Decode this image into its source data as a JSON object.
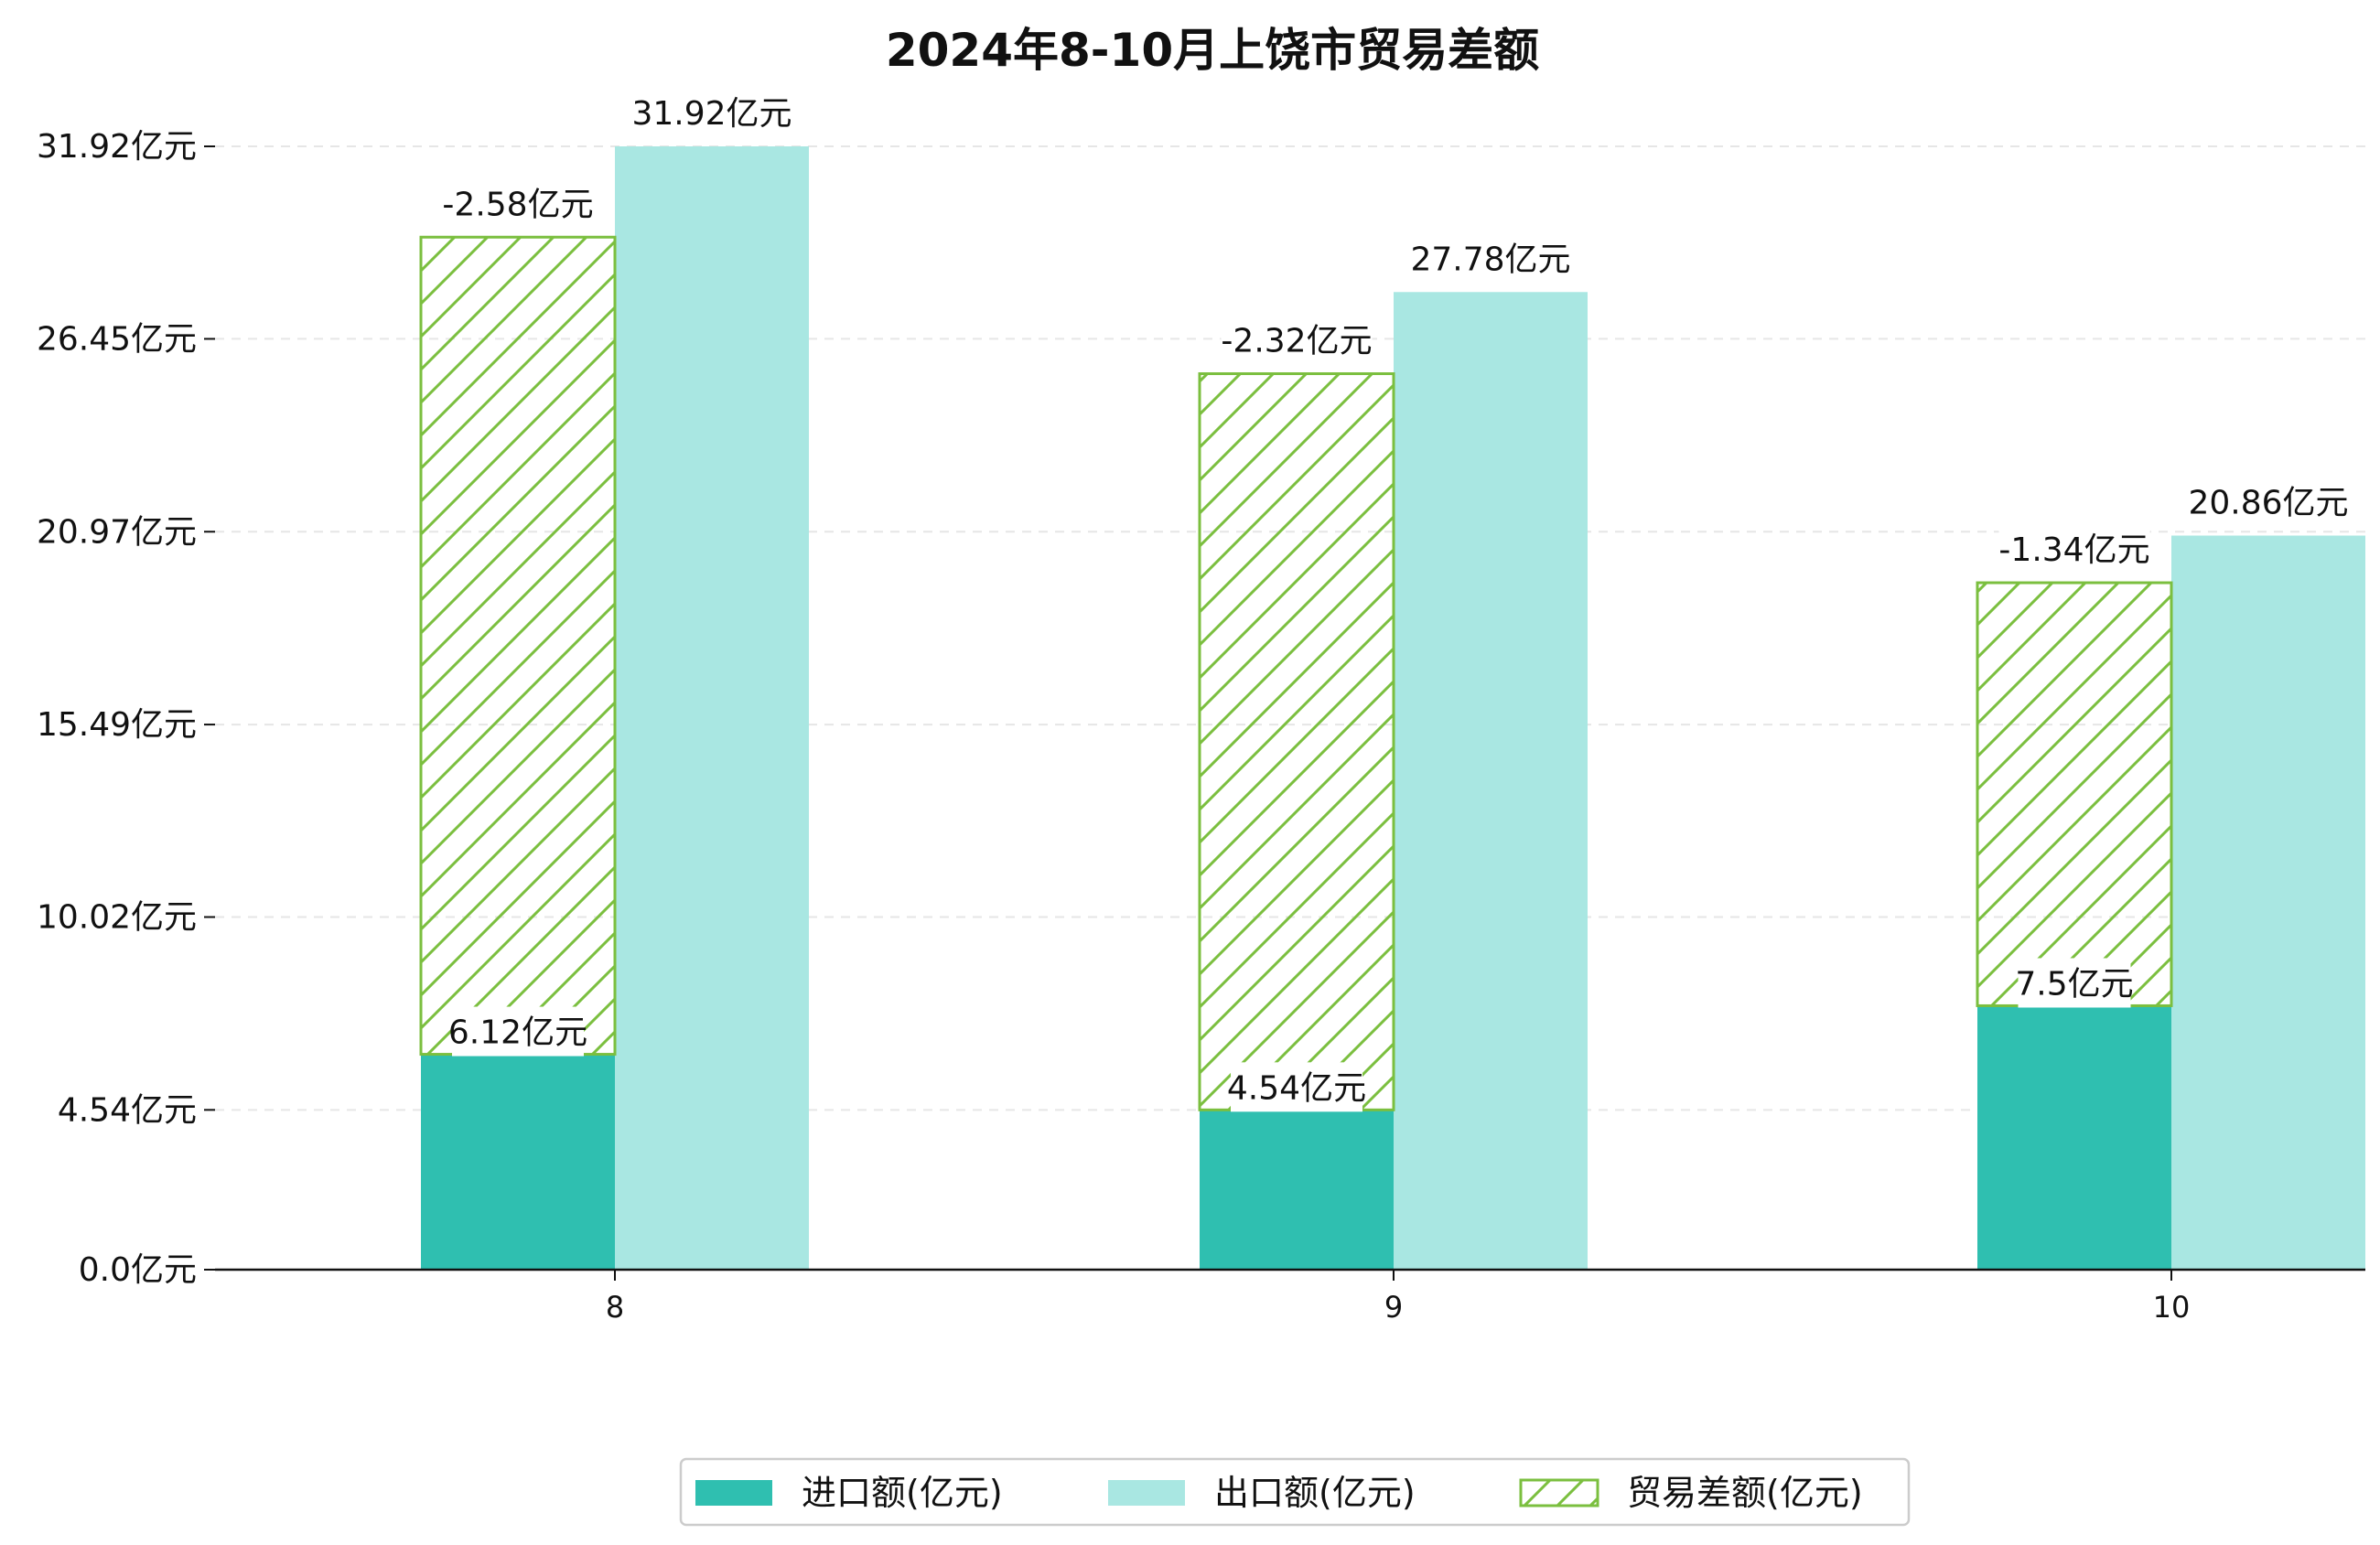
{
  "chart_data": {
    "type": "bar",
    "title": "2024年8-10月上饶市贸易差额",
    "categories": [
      "8",
      "9",
      "10"
    ],
    "series": [
      {
        "name": "进口额(亿元)",
        "values": [
          6.12,
          4.54,
          7.5
        ],
        "labels": [
          "6.12亿元",
          "4.54亿元",
          "7.5亿元"
        ],
        "color": "#2fbfb0"
      },
      {
        "name": "出口额(亿元)",
        "values": [
          31.92,
          27.78,
          20.86
        ],
        "labels": [
          "31.92亿元",
          "27.78亿元",
          "20.86亿元"
        ],
        "color": "#a9e7e2"
      },
      {
        "name": "贸易差额(亿元)",
        "values": [
          -2.58,
          -2.32,
          -1.34
        ],
        "labels": [
          "-2.58亿元",
          "-2.32亿元",
          "-1.34亿元"
        ],
        "color": "#7bbf3f"
      }
    ],
    "y_ticks": [
      {
        "value": 0.0,
        "label": "0.0亿元"
      },
      {
        "value": 4.54,
        "label": "4.54亿元"
      },
      {
        "value": 10.02,
        "label": "10.02亿元"
      },
      {
        "value": 15.49,
        "label": "15.49亿元"
      },
      {
        "value": 20.97,
        "label": "20.97亿元"
      },
      {
        "value": 26.45,
        "label": "26.45亿元"
      },
      {
        "value": 31.92,
        "label": "31.92亿元"
      }
    ],
    "ylim": [
      0,
      33
    ],
    "grid": true,
    "legend_position": "bottom-center",
    "xlabel": "",
    "ylabel": ""
  }
}
